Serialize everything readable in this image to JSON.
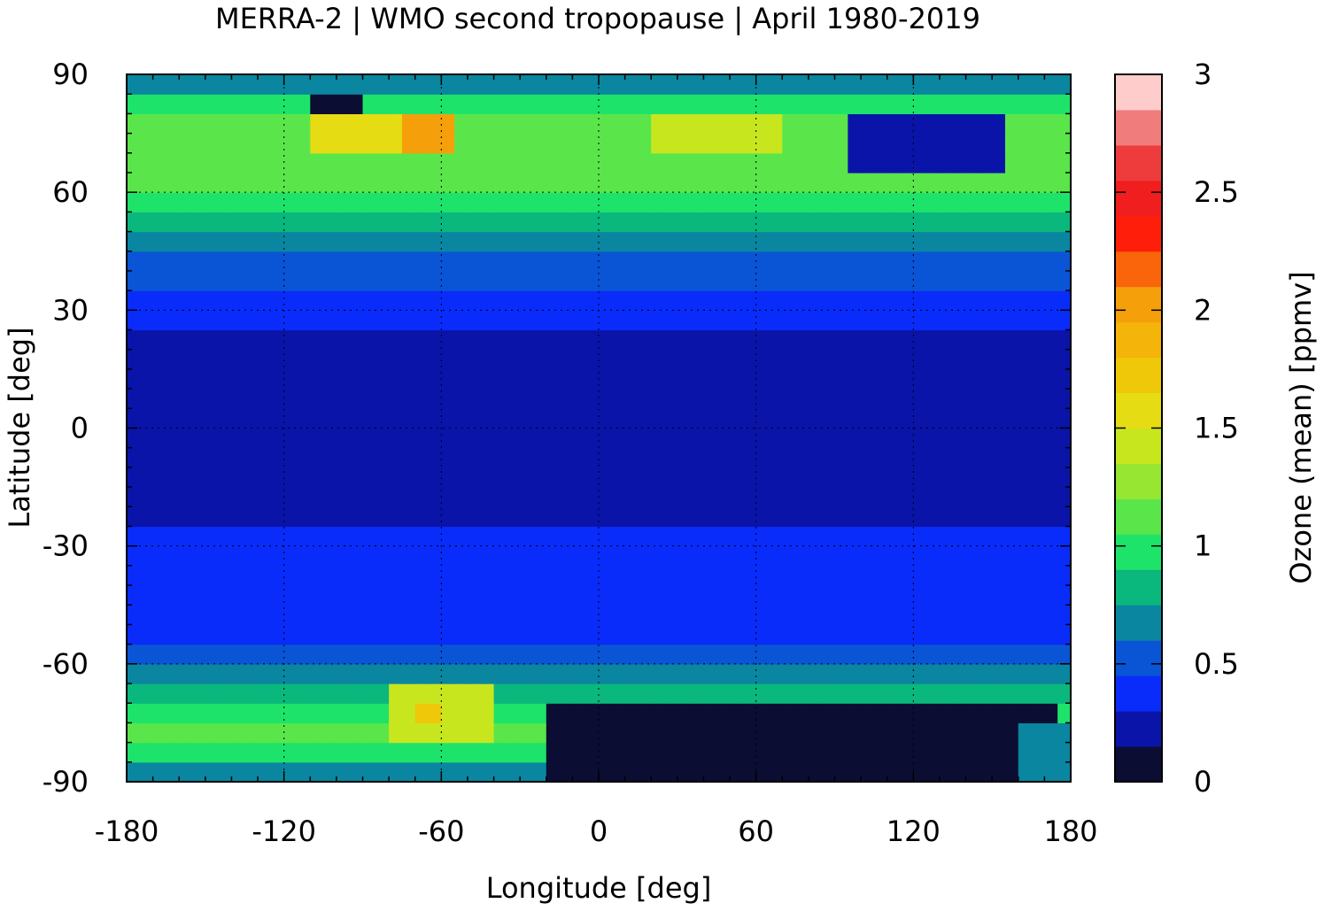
{
  "chart_data": {
    "type": "heatmap",
    "title": "MERRA-2 | WMO second tropopause | April 1980-2019",
    "xlabel": "Longitude [deg]",
    "ylabel": "Latitude [deg]",
    "colorbar_label": "Ozone (mean) [ppmv]",
    "xlim": [
      -180,
      180
    ],
    "ylim": [
      -90,
      90
    ],
    "x_ticks": [
      -180,
      -120,
      -60,
      0,
      60,
      120,
      180
    ],
    "x_tick_labels": [
      "-180",
      "-120",
      "-60",
      "0",
      "60",
      "120",
      "180"
    ],
    "y_ticks": [
      90,
      60,
      30,
      0,
      -30,
      -60,
      -90
    ],
    "y_tick_labels": [
      "90",
      "60",
      "30",
      "0",
      "-30",
      "-60",
      "-90"
    ],
    "grid": true,
    "colorbar": {
      "range": [
        0,
        3
      ],
      "ticks": [
        0,
        0.5,
        1,
        1.5,
        2,
        2.5,
        3
      ],
      "tick_labels": [
        "0",
        "0.5",
        "1",
        "1.5",
        "2",
        "2.5",
        "3"
      ],
      "levels": [
        {
          "from": 0.0,
          "to": 0.15,
          "color": "#0b0d33"
        },
        {
          "from": 0.15,
          "to": 0.3,
          "color": "#0a14a8"
        },
        {
          "from": 0.3,
          "to": 0.45,
          "color": "#0a2cfa"
        },
        {
          "from": 0.45,
          "to": 0.6,
          "color": "#0a55d6"
        },
        {
          "from": 0.6,
          "to": 0.75,
          "color": "#0a86a0"
        },
        {
          "from": 0.75,
          "to": 0.9,
          "color": "#0ab77c"
        },
        {
          "from": 0.9,
          "to": 1.05,
          "color": "#1ee36a"
        },
        {
          "from": 1.05,
          "to": 1.2,
          "color": "#5ae64a"
        },
        {
          "from": 1.2,
          "to": 1.35,
          "color": "#96e632"
        },
        {
          "from": 1.35,
          "to": 1.5,
          "color": "#c8e61e"
        },
        {
          "from": 1.5,
          "to": 1.65,
          "color": "#e6dc14"
        },
        {
          "from": 1.65,
          "to": 1.8,
          "color": "#f0c80a"
        },
        {
          "from": 1.8,
          "to": 1.95,
          "color": "#f5b40a"
        },
        {
          "from": 1.95,
          "to": 2.1,
          "color": "#f5a00a"
        },
        {
          "from": 2.1,
          "to": 2.25,
          "color": "#fa640a"
        },
        {
          "from": 2.25,
          "to": 2.4,
          "color": "#ff1e0a"
        },
        {
          "from": 2.4,
          "to": 2.55,
          "color": "#f01e1e"
        },
        {
          "from": 2.55,
          "to": 2.7,
          "color": "#ee3c3c"
        },
        {
          "from": 2.7,
          "to": 2.85,
          "color": "#f07c7c"
        },
        {
          "from": 2.85,
          "to": 3.0,
          "color": "#ffcccc"
        }
      ]
    },
    "zonal_mean_profile": [
      {
        "lat": -90,
        "value": 0.55
      },
      {
        "lat": -85,
        "value": 0.8
      },
      {
        "lat": -78,
        "value": 1.15
      },
      {
        "lat": -70,
        "value": 1.0
      },
      {
        "lat": -63,
        "value": 0.65
      },
      {
        "lat": -57,
        "value": 0.5
      },
      {
        "lat": -50,
        "value": 0.42
      },
      {
        "lat": -40,
        "value": 0.38
      },
      {
        "lat": -30,
        "value": 0.33
      },
      {
        "lat": -20,
        "value": 0.22
      },
      {
        "lat": -10,
        "value": 0.18
      },
      {
        "lat": 0,
        "value": 0.18
      },
      {
        "lat": 10,
        "value": 0.18
      },
      {
        "lat": 20,
        "value": 0.22
      },
      {
        "lat": 28,
        "value": 0.32
      },
      {
        "lat": 35,
        "value": 0.42
      },
      {
        "lat": 42,
        "value": 0.52
      },
      {
        "lat": 48,
        "value": 0.68
      },
      {
        "lat": 55,
        "value": 0.9
      },
      {
        "lat": 62,
        "value": 1.05
      },
      {
        "lat": 68,
        "value": 1.15
      },
      {
        "lat": 75,
        "value": 1.2
      },
      {
        "lat": 80,
        "value": 1.1
      },
      {
        "lat": 85,
        "value": 0.8
      },
      {
        "lat": 90,
        "value": 0.5
      }
    ],
    "regional_features": [
      {
        "lon_min": -20,
        "lon_max": 175,
        "lat_min": -90,
        "lat_max": -70,
        "value": 0.1
      },
      {
        "lon_min": 95,
        "lon_max": 155,
        "lat_min": 63,
        "lat_max": 78,
        "value": 0.15
      },
      {
        "lon_min": -110,
        "lon_max": -90,
        "lat_min": 78,
        "lat_max": 84,
        "value": 0.12
      },
      {
        "lon_min": -75,
        "lon_max": -55,
        "lat_min": 72,
        "lat_max": 80,
        "value": 2.05
      },
      {
        "lon_min": -110,
        "lon_max": -75,
        "lat_min": 72,
        "lat_max": 80,
        "value": 1.6
      },
      {
        "lon_min": 20,
        "lon_max": 70,
        "lat_min": 70,
        "lat_max": 80,
        "value": 1.45
      },
      {
        "lon_min": -80,
        "lon_max": -40,
        "lat_min": -80,
        "lat_max": -65,
        "value": 1.45
      },
      {
        "lon_min": -70,
        "lon_max": -58,
        "lat_min": -76,
        "lat_max": -68,
        "value": 1.7
      },
      {
        "lon_min": 160,
        "lon_max": 180,
        "lat_min": -90,
        "lat_max": -75,
        "value": 0.7
      }
    ]
  }
}
